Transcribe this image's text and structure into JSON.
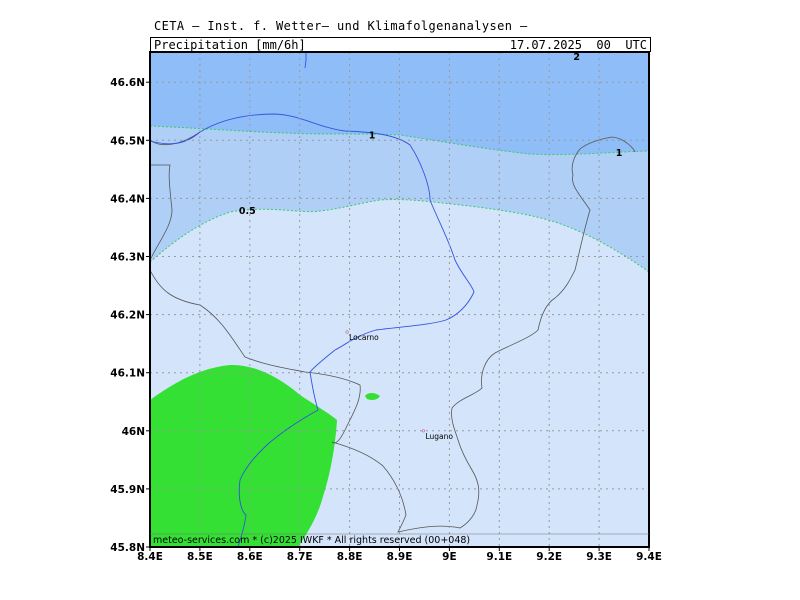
{
  "header": {
    "institution": "CETA — Inst. f. Wetter— und Klimafolgenanalysen —"
  },
  "title_bar": {
    "parameter": "Precipitation_[mm/6h]",
    "valid_time": "17.07.2025  00  UTC"
  },
  "footer": {
    "credit": "meteo-services.com * (c)2025 IWKF * All rights reserved (00+048)"
  },
  "map": {
    "lon_range": [
      8.4,
      9.4
    ],
    "lat_range": [
      45.8,
      46.65
    ],
    "lon_ticks": [
      "8.4E",
      "8.5E",
      "8.6E",
      "8.7E",
      "8.8E",
      "8.9E",
      "9E",
      "9.1E",
      "9.2E",
      "9.3E",
      "9.4E"
    ],
    "lat_ticks": [
      "45.8N",
      "45.9N",
      "46N",
      "46.1N",
      "46.2N",
      "46.3N",
      "46.4N",
      "46.5N",
      "46.6N"
    ],
    "grid": true,
    "contour_labels": [
      {
        "text": "0.5",
        "lon": 8.595,
        "lat": 46.38
      },
      {
        "text": "1",
        "lon": 8.845,
        "lat": 46.51
      },
      {
        "text": "1",
        "lon": 9.34,
        "lat": 46.48
      },
      {
        "text": "2",
        "lon": 9.255,
        "lat": 46.645
      }
    ],
    "cities": [
      {
        "name": "Locarno",
        "lon": 8.795,
        "lat": 46.17
      },
      {
        "name": "Lugano",
        "lon": 8.948,
        "lat": 46.0
      }
    ],
    "colors": {
      "level_0_0.5": "#d4e4fb",
      "level_0.5_1": "#b0cff7",
      "level_1_2": "#8fbdf7",
      "green_area": "#33e033",
      "border": "#555555",
      "river": "#3355dd",
      "contour": "#33cc66"
    }
  }
}
